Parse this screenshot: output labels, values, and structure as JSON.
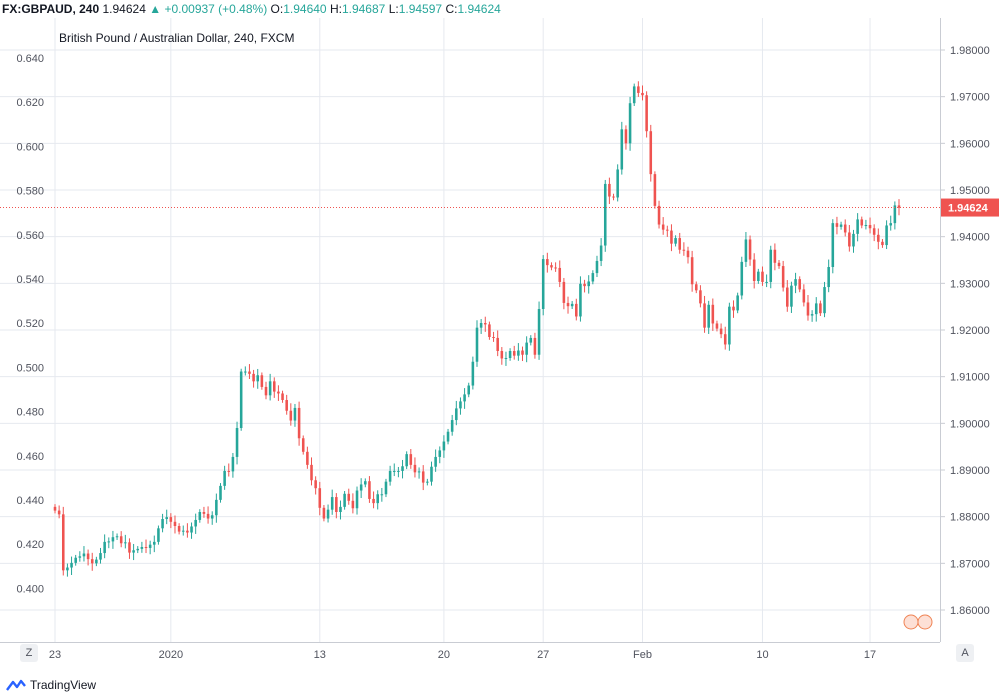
{
  "header": {
    "symbol": "FX:GBPAUD, 240",
    "last": "1.94624",
    "change": "+0.00937 (+0.48%)",
    "open_label": "O:",
    "open": "1.94640",
    "high_label": "H:",
    "high": "1.94687",
    "low_label": "L:",
    "low": "1.94597",
    "close_label": "C:",
    "close": "1.94624"
  },
  "footer": {
    "brand": "TradingView",
    "zoom_button": "Z",
    "auto_button": "A"
  },
  "colors": {
    "up": "#26a69a",
    "down": "#ef5350",
    "price_line": "#ef5350",
    "grid": "#e6e9ef"
  },
  "chart_data": {
    "type": "candlestick",
    "title": "British Pound / Australian Dollar, 240, FXCM",
    "last_price_label": "1.94624",
    "left_axis": {
      "ticks": [
        "0.640",
        "0.620",
        "0.600",
        "0.580",
        "0.560",
        "0.540",
        "0.520",
        "0.500",
        "0.480",
        "0.460",
        "0.440",
        "0.420",
        "0.400"
      ]
    },
    "right_axis": {
      "ylim": [
        1.854,
        1.986
      ],
      "ticks": [
        "1.98000",
        "1.97000",
        "1.96000",
        "1.95000",
        "1.94000",
        "1.93000",
        "1.92000",
        "1.91000",
        "1.90000",
        "1.89000",
        "1.88000",
        "1.87000",
        "1.86000"
      ]
    },
    "x_labels": [
      "23",
      "2020",
      "13",
      "20",
      "27",
      "Feb",
      "10",
      "17"
    ],
    "closes": [
      1.8813,
      1.8805,
      1.8685,
      1.8691,
      1.8701,
      1.8712,
      1.8715,
      1.8721,
      1.8709,
      1.87,
      1.8708,
      1.8722,
      1.8746,
      1.8747,
      1.8756,
      1.8758,
      1.8743,
      1.8745,
      1.8723,
      1.8728,
      1.8731,
      1.8735,
      1.8733,
      1.874,
      1.8746,
      1.8775,
      1.8795,
      1.8799,
      1.8789,
      1.878,
      1.8768,
      1.877,
      1.8766,
      1.8779,
      1.8793,
      1.881,
      1.8806,
      1.8796,
      1.8803,
      1.8836,
      1.8866,
      1.8898,
      1.8897,
      1.8928,
      1.899,
      1.9111,
      1.9111,
      1.9106,
      1.909,
      1.9103,
      1.9078,
      1.906,
      1.909,
      1.9068,
      1.9064,
      1.905,
      1.9027,
      1.9006,
      1.9033,
      1.8968,
      1.8939,
      1.8911,
      1.8878,
      1.8861,
      1.8819,
      1.8796,
      1.8815,
      1.8842,
      1.881,
      1.8821,
      1.8849,
      1.8834,
      1.8818,
      1.8856,
      1.8869,
      1.8876,
      1.8838,
      1.8829,
      1.8848,
      1.8848,
      1.8875,
      1.8898,
      1.8898,
      1.8898,
      1.8908,
      1.8934,
      1.8911,
      1.8895,
      1.8897,
      1.8873,
      1.8875,
      1.8907,
      1.8928,
      1.8942,
      1.8961,
      1.8982,
      1.9007,
      1.9032,
      1.9047,
      1.9062,
      1.9081,
      1.9132,
      1.9205,
      1.9215,
      1.9212,
      1.9185,
      1.9183,
      1.9155,
      1.9139,
      1.914,
      1.9155,
      1.9145,
      1.9156,
      1.9147,
      1.9173,
      1.9183,
      1.9147,
      1.9245,
      1.9352,
      1.9339,
      1.9334,
      1.9333,
      1.9303,
      1.9258,
      1.9251,
      1.9256,
      1.9229,
      1.9299,
      1.9294,
      1.9304,
      1.9322,
      1.9348,
      1.9381,
      1.9513,
      1.9486,
      1.9484,
      1.9544,
      1.963,
      1.96,
      1.9686,
      1.9722,
      1.9708,
      1.9703,
      1.9626,
      1.9534,
      1.9466,
      1.9426,
      1.9415,
      1.9413,
      1.9385,
      1.9397,
      1.9372,
      1.937,
      1.9356,
      1.9298,
      1.9285,
      1.9257,
      1.9205,
      1.9254,
      1.9214,
      1.9203,
      1.9191,
      1.9169,
      1.925,
      1.9242,
      1.9274,
      1.9346,
      1.9394,
      1.9351,
      1.9305,
      1.9325,
      1.9303,
      1.9303,
      1.9372,
      1.9344,
      1.9337,
      1.9291,
      1.925,
      1.9295,
      1.9309,
      1.9287,
      1.9259,
      1.9231,
      1.9234,
      1.9257,
      1.9236,
      1.9292,
      1.9335,
      1.9429,
      1.9421,
      1.9426,
      1.9409,
      1.9379,
      1.9406,
      1.9437,
      1.9424,
      1.9425,
      1.9418,
      1.9404,
      1.9389,
      1.9382,
      1.9424,
      1.9429,
      1.9467,
      1.9462
    ]
  }
}
